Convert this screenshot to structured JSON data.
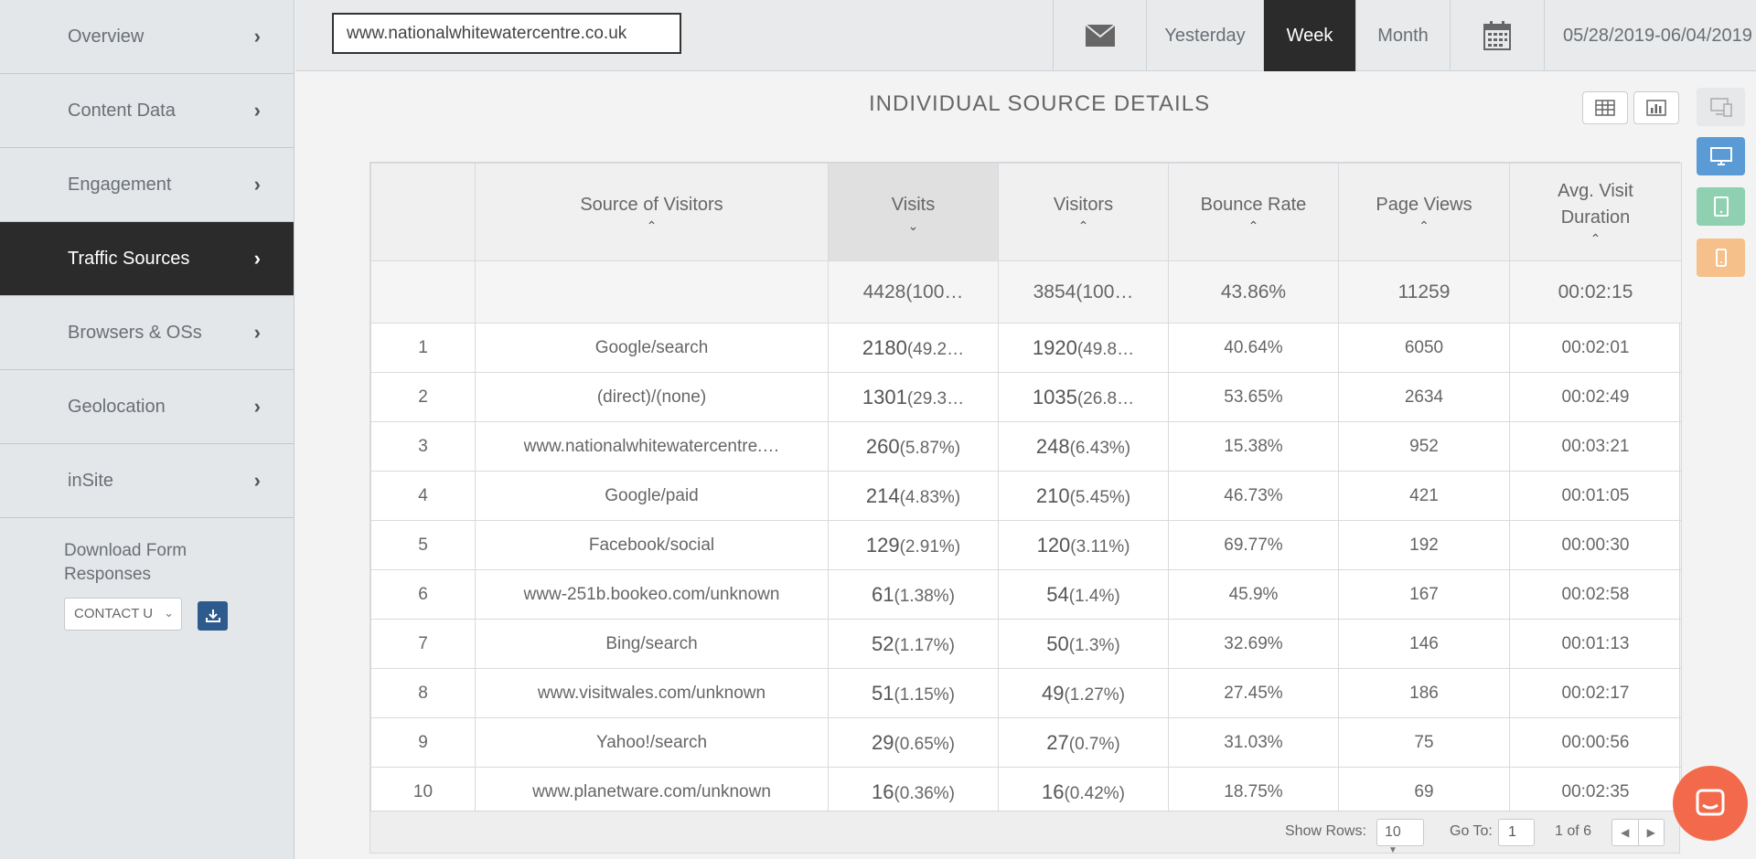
{
  "sidebar": {
    "items": [
      {
        "label": "Overview"
      },
      {
        "label": "Content Data"
      },
      {
        "label": "Engagement"
      },
      {
        "label": "Traffic Sources"
      },
      {
        "label": "Browsers & OSs"
      },
      {
        "label": "Geolocation"
      },
      {
        "label": "inSite"
      }
    ],
    "active_item": "Traffic Sources",
    "download_label": "Download Form Responses",
    "form_select_value": "CONTACT U"
  },
  "topbar": {
    "url_value": "www.nationalwhitewatercentre.co.uk",
    "yesterday": "Yesterday",
    "week": "Week",
    "month": "Month",
    "date_range": "05/28/2019-06/04/2019",
    "active_period": "Week"
  },
  "panel": {
    "title": "INDIVIDUAL  SOURCE  DETAILS"
  },
  "table": {
    "headers": {
      "source": "Source of Visitors",
      "visits": "Visits",
      "visitors": "Visitors",
      "bounce": "Bounce Rate",
      "pageviews": "Page Views",
      "duration_line1": "Avg. Visit",
      "duration_line2": "Duration"
    },
    "totals": {
      "visits": "4428(100…",
      "visitors": "3854(100…",
      "bounce": "43.86%",
      "pageviews": "11259",
      "duration": "00:02:15"
    },
    "rows": [
      {
        "n": "1",
        "source": "Google/search",
        "visits": "2180",
        "visits_pct": "(49.2…",
        "visitors": "1920",
        "visitors_pct": "(49.8…",
        "bounce": "40.64%",
        "pageviews": "6050",
        "duration": "00:02:01"
      },
      {
        "n": "2",
        "source": "(direct)/(none)",
        "visits": "1301",
        "visits_pct": "(29.3…",
        "visitors": "1035",
        "visitors_pct": "(26.8…",
        "bounce": "53.65%",
        "pageviews": "2634",
        "duration": "00:02:49"
      },
      {
        "n": "3",
        "source": "www.nationalwhitewatercentre.…",
        "visits": "260",
        "visits_pct": "(5.87%)",
        "visitors": "248",
        "visitors_pct": "(6.43%)",
        "bounce": "15.38%",
        "pageviews": "952",
        "duration": "00:03:21"
      },
      {
        "n": "4",
        "source": "Google/paid",
        "visits": "214",
        "visits_pct": "(4.83%)",
        "visitors": "210",
        "visitors_pct": "(5.45%)",
        "bounce": "46.73%",
        "pageviews": "421",
        "duration": "00:01:05"
      },
      {
        "n": "5",
        "source": "Facebook/social",
        "visits": "129",
        "visits_pct": "(2.91%)",
        "visitors": "120",
        "visitors_pct": "(3.11%)",
        "bounce": "69.77%",
        "pageviews": "192",
        "duration": "00:00:30"
      },
      {
        "n": "6",
        "source": "www-251b.bookeo.com/unknown",
        "visits": "61",
        "visits_pct": "(1.38%)",
        "visitors": "54",
        "visitors_pct": "(1.4%)",
        "bounce": "45.9%",
        "pageviews": "167",
        "duration": "00:02:58"
      },
      {
        "n": "7",
        "source": "Bing/search",
        "visits": "52",
        "visits_pct": "(1.17%)",
        "visitors": "50",
        "visitors_pct": "(1.3%)",
        "bounce": "32.69%",
        "pageviews": "146",
        "duration": "00:01:13"
      },
      {
        "n": "8",
        "source": "www.visitwales.com/unknown",
        "visits": "51",
        "visits_pct": "(1.15%)",
        "visitors": "49",
        "visitors_pct": "(1.27%)",
        "bounce": "27.45%",
        "pageviews": "186",
        "duration": "00:02:17"
      },
      {
        "n": "9",
        "source": "Yahoo!/search",
        "visits": "29",
        "visits_pct": "(0.65%)",
        "visitors": "27",
        "visitors_pct": "(0.7%)",
        "bounce": "31.03%",
        "pageviews": "75",
        "duration": "00:00:56"
      },
      {
        "n": "10",
        "source": "www.planetware.com/unknown",
        "visits": "16",
        "visits_pct": "(0.36%)",
        "visitors": "16",
        "visitors_pct": "(0.42%)",
        "bounce": "18.75%",
        "pageviews": "69",
        "duration": "00:02:35"
      }
    ],
    "footer": {
      "show_rows_label": "Show Rows:",
      "show_rows_value": "10",
      "goto_label": "Go To:",
      "goto_value": "1",
      "page_info": "1 of 6"
    }
  },
  "colors": {
    "active_bg": "#2b2b2b",
    "download_button": "#2d5b8e",
    "desktop_button": "#5b9bd5",
    "tablet_button": "#8fd0b0",
    "mobile_button": "#f5c08a",
    "chat_bubble": "#f26a4b"
  },
  "icons": [
    "chevron-right-icon",
    "envelope-icon",
    "calendar-icon",
    "grid-table-icon",
    "bar-chart-icon",
    "all-devices-icon",
    "desktop-icon",
    "tablet-icon",
    "mobile-icon",
    "download-icon",
    "chat-icon"
  ]
}
